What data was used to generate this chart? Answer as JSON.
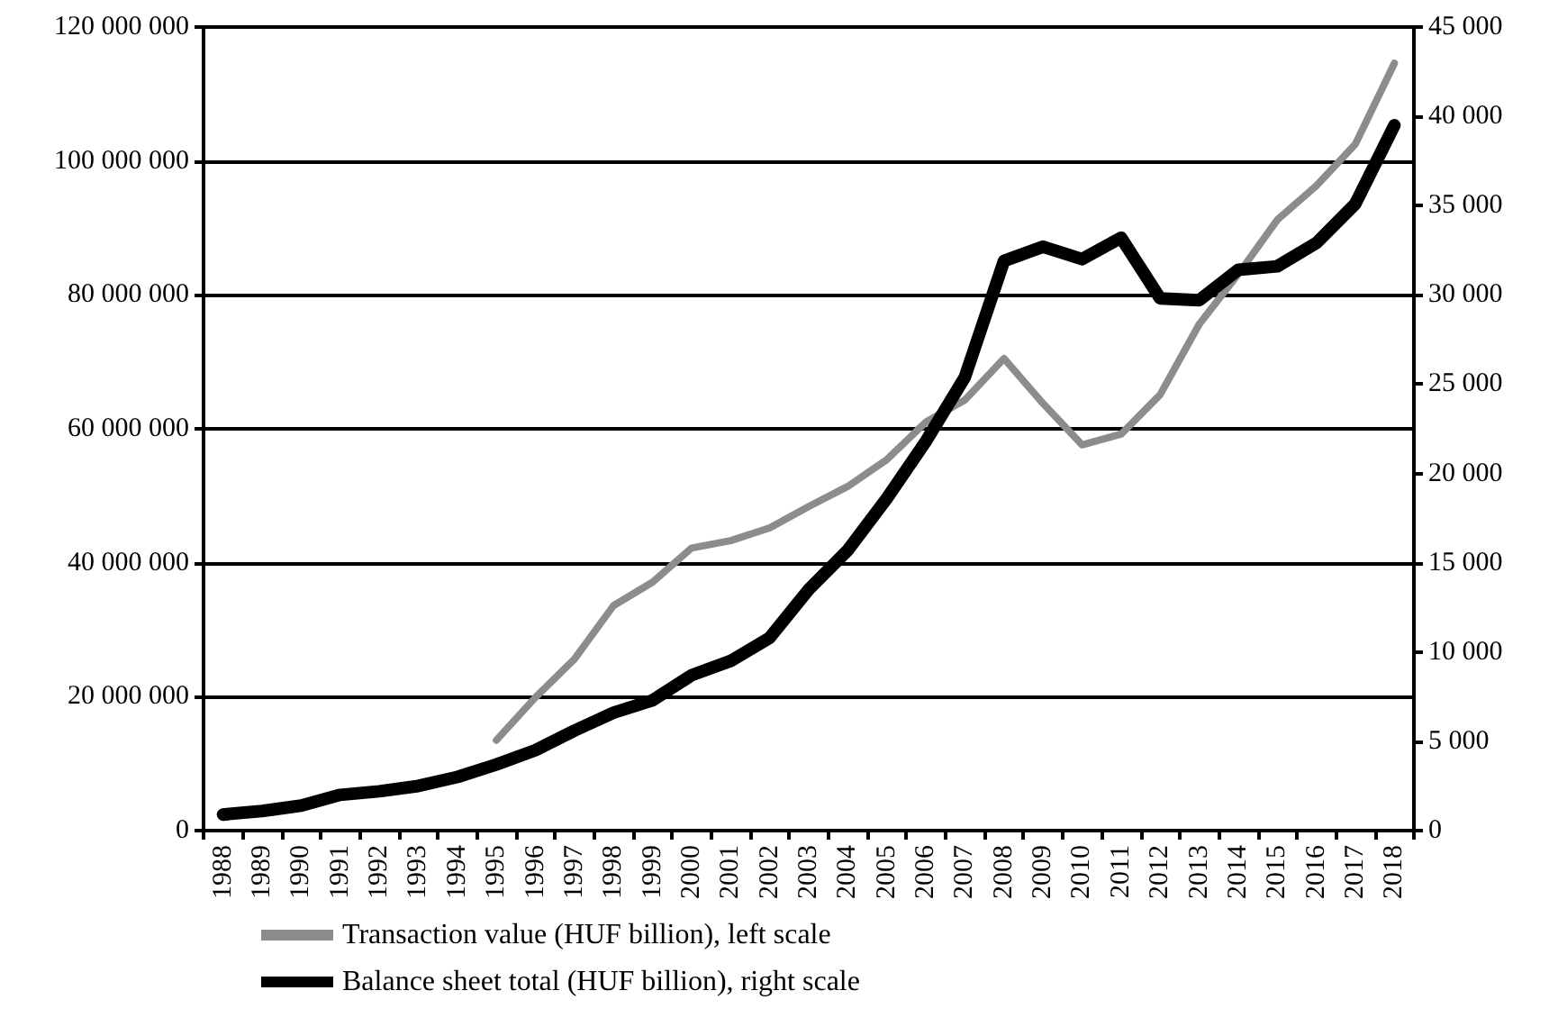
{
  "chart_data": {
    "type": "line",
    "categories": [
      "1988",
      "1989",
      "1990",
      "1991",
      "1992",
      "1993",
      "1994",
      "1995",
      "1996",
      "1997",
      "1998",
      "1999",
      "2000",
      "2001",
      "2002",
      "2003",
      "2004",
      "2005",
      "2006",
      "2007",
      "2008",
      "2009",
      "2010",
      "2011",
      "2012",
      "2013",
      "2014",
      "2015",
      "2016",
      "2017",
      "2018"
    ],
    "series": [
      {
        "name": "Transaction value (HUF billion), left scale",
        "color": "#8c8c8c",
        "values": [
          null,
          null,
          null,
          null,
          null,
          null,
          null,
          13500000,
          19900000,
          25600000,
          33600000,
          37100000,
          42200000,
          43300000,
          45200000,
          48400000,
          51400000,
          55400000,
          61000000,
          64300000,
          70500000,
          63800000,
          57600000,
          59200000,
          65100000,
          75600000,
          83100000,
          91200000,
          96300000,
          102500000,
          114600000
        ]
      },
      {
        "name": "Balance sheet total (HUF billion), right scale",
        "color": "#000000",
        "axis": "y2",
        "values": [
          900,
          1100,
          1400,
          2000,
          2200,
          2500,
          3000,
          3700,
          4500,
          5600,
          6600,
          7300,
          8700,
          9500,
          10800,
          13500,
          15700,
          18600,
          21800,
          25400,
          31900,
          32700,
          32000,
          33200,
          29800,
          29700,
          31400,
          31600,
          32900,
          35100,
          39500
        ]
      }
    ],
    "ylim": [
      0,
      120000000
    ],
    "yticks": [
      {
        "value": 0,
        "label": "0"
      },
      {
        "value": 20000000,
        "label": "20 000 000"
      },
      {
        "value": 40000000,
        "label": "40 000 000"
      },
      {
        "value": 60000000,
        "label": "60 000 000"
      },
      {
        "value": 80000000,
        "label": "80 000 000"
      },
      {
        "value": 100000000,
        "label": "100 000 000"
      },
      {
        "value": 120000000,
        "label": "120 000 000"
      }
    ],
    "y2lim": [
      0,
      45000
    ],
    "y2ticks": [
      {
        "value": 0,
        "label": "0"
      },
      {
        "value": 5000,
        "label": "5 000"
      },
      {
        "value": 10000,
        "label": "10 000"
      },
      {
        "value": 15000,
        "label": "15 000"
      },
      {
        "value": 20000,
        "label": "20 000"
      },
      {
        "value": 25000,
        "label": "25 000"
      },
      {
        "value": 30000,
        "label": "30 000"
      },
      {
        "value": 35000,
        "label": "35 000"
      },
      {
        "value": 40000,
        "label": "40 000"
      },
      {
        "value": 45000,
        "label": "45 000"
      }
    ],
    "grid": "y",
    "legend": "bottom",
    "marker": "none",
    "line_style": "solid"
  }
}
